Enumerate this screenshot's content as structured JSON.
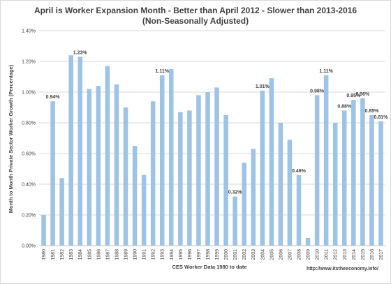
{
  "chart_data": {
    "type": "bar",
    "title": "April is Worker Expansion Month - Better than April 2012 - Slower than 2013-2016",
    "subtitle": "(Non-Seasonally Adjusted)",
    "xlabel": "CES Worker Data 1980 to date",
    "ylabel": "Month to Month Private Sector Worker Growth (Percentage)",
    "ylim": [
      0,
      1.4
    ],
    "yticks": [
      "0.00%",
      "0.20%",
      "0.40%",
      "0.60%",
      "0.80%",
      "1.00%",
      "1.20%",
      "1.40%"
    ],
    "grid": true,
    "bar_color": "#9dc3e6",
    "categories": [
      "1980",
      "1981",
      "1982",
      "1983",
      "1984",
      "1985",
      "1986",
      "1987",
      "1988",
      "1989",
      "1990",
      "1991",
      "1992",
      "1993",
      "1994",
      "1995",
      "1996",
      "1997",
      "1998",
      "1999",
      "2000",
      "2001",
      "2002",
      "2003",
      "2004",
      "2005",
      "2006",
      "2007",
      "2008",
      "2009",
      "2010",
      "2011",
      "2012",
      "2013",
      "2014",
      "2015",
      "2016",
      "2017"
    ],
    "values": [
      0.2,
      0.94,
      0.44,
      1.24,
      1.23,
      1.02,
      1.04,
      1.17,
      1.05,
      0.9,
      0.65,
      0.46,
      0.94,
      1.11,
      1.15,
      0.87,
      0.88,
      0.98,
      1.0,
      1.03,
      0.85,
      0.32,
      0.54,
      0.63,
      1.01,
      1.09,
      0.8,
      0.69,
      0.46,
      0.05,
      0.98,
      1.11,
      0.8,
      0.88,
      0.95,
      0.96,
      0.85,
      0.81
    ],
    "data_labels": [
      {
        "category": "1981",
        "text": "0.94%"
      },
      {
        "category": "1984",
        "text": "1.23%"
      },
      {
        "category": "1993",
        "text": "1.11%"
      },
      {
        "category": "2001",
        "text": "0.32%"
      },
      {
        "category": "2004",
        "text": "1.01%"
      },
      {
        "category": "2008",
        "text": "0.46%"
      },
      {
        "category": "2010",
        "text": "0.98%"
      },
      {
        "category": "2011",
        "text": "1.11%"
      },
      {
        "category": "2013",
        "text": "0.88%"
      },
      {
        "category": "2014",
        "text": "0.95%"
      },
      {
        "category": "2015",
        "text": "0.96%"
      },
      {
        "category": "2016",
        "text": "0.85%"
      },
      {
        "category": "2017",
        "text": "0.81%"
      }
    ]
  },
  "footer": {
    "url": "http://www.itstheeconomy.info/"
  }
}
